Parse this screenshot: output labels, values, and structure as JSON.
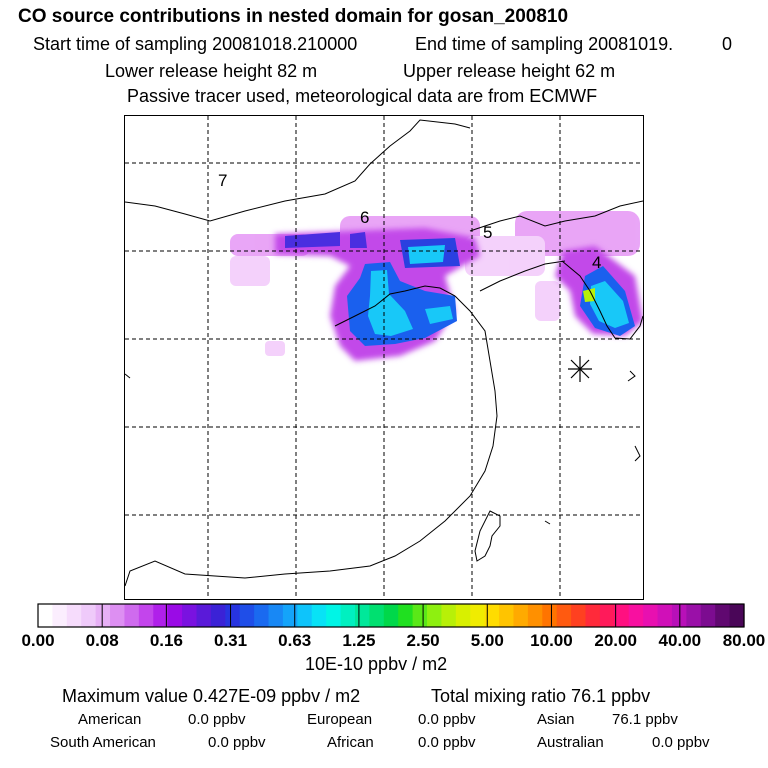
{
  "header": {
    "title": "CO  source contributions in nested domain for gosan_200810",
    "start_label": "Start time of sampling 20081018.210000",
    "end_label": "End time of sampling 20081019.",
    "end_suffix": "0",
    "lower_height": "Lower release height   82 m",
    "upper_height": "Upper release height   62 m",
    "tracer_note": "Passive tracer used, meteorological data are from ECMWF"
  },
  "map": {
    "region_labels": [
      "7",
      "6",
      "5",
      "4"
    ],
    "receptor_marker": "star-icon"
  },
  "colorbar": {
    "tick_labels": [
      "0.00",
      "0.08",
      "0.16",
      "0.31",
      "0.63",
      "1.25",
      "2.50",
      "5.00",
      "10.00",
      "20.00",
      "40.00",
      "80.00"
    ],
    "colors": [
      "#ffffff",
      "#fbeefe",
      "#f6dcfc",
      "#efcafa",
      "#e7b0f6",
      "#dd8ff2",
      "#cf6bee",
      "#c345ec",
      "#b020ea",
      "#9a0be6",
      "#7a12e0",
      "#5a1ad9",
      "#3b22d6",
      "#2734e0",
      "#1f4ee8",
      "#1a6af0",
      "#1888f5",
      "#14a4fa",
      "#0ec4fb",
      "#08e2f6",
      "#00f5e6",
      "#00f0c0",
      "#00e89a",
      "#00e070",
      "#00d84a",
      "#20e020",
      "#5ae818",
      "#8ef010",
      "#b8f008",
      "#d8f000",
      "#f0ec00",
      "#ffdc00",
      "#ffc400",
      "#ffaa00",
      "#ff9000",
      "#ff7400",
      "#ff5a10",
      "#ff4020",
      "#ff2a3a",
      "#ff1a5a",
      "#ff1080",
      "#f810a0",
      "#e810b0",
      "#d010b8",
      "#b810b8",
      "#9a10a8",
      "#7c0c90",
      "#600870",
      "#4a0658"
    ],
    "unit": "10E-10 ppbv / m2"
  },
  "stats": {
    "max_value": "Maximum value  0.427E-09 ppbv / m2",
    "total_mixing": "Total mixing ratio       76.1 ppbv",
    "american": "American",
    "american_val": "0.0 ppbv",
    "european": "European",
    "european_val": "0.0 ppbv",
    "asian": "Asian",
    "asian_val": "76.1 ppbv",
    "south_american": "South American",
    "south_american_val": "0.0 ppbv",
    "african": "African",
    "african_val": "0.0 ppbv",
    "australian": "Australian",
    "australian_val": "0.0 ppbv"
  }
}
